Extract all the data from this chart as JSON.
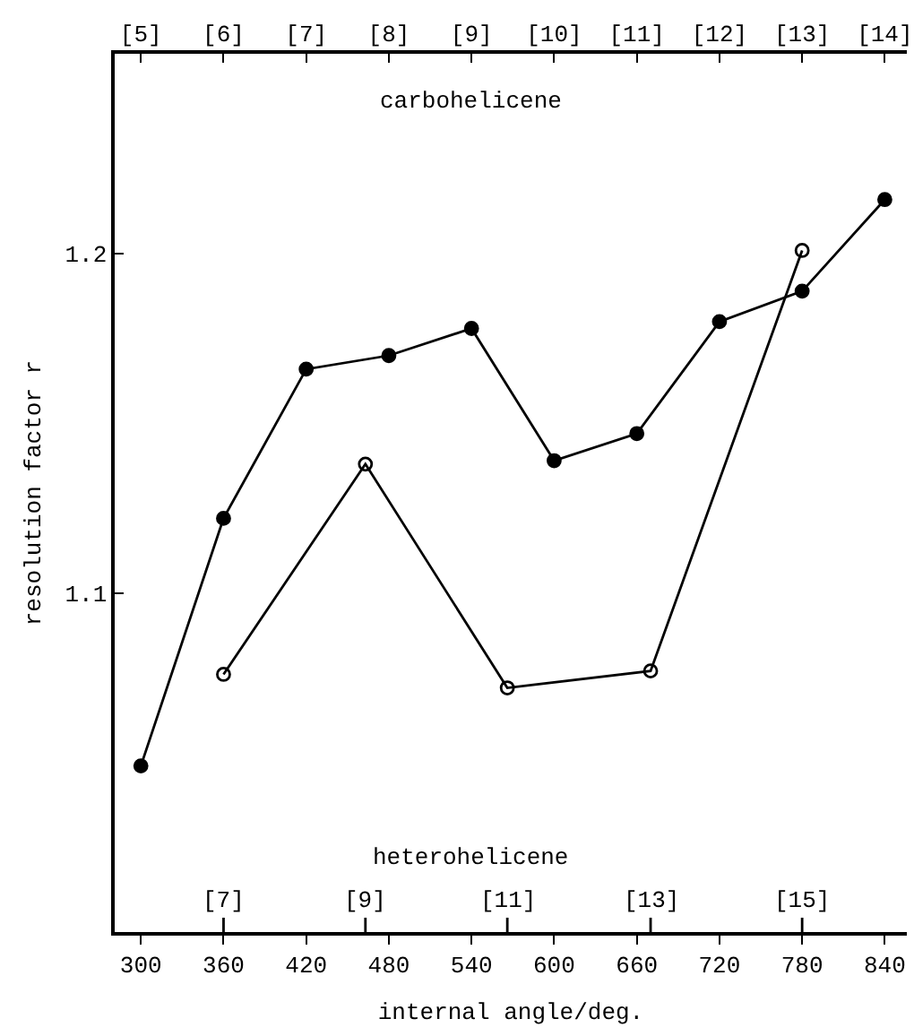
{
  "chart_data": {
    "type": "line",
    "xlabel": "internal angle/deg.",
    "ylabel": "resolution factor r",
    "xlim": [
      281,
      856
    ],
    "xticks": [
      300,
      360,
      420,
      480,
      540,
      600,
      660,
      720,
      780,
      840
    ],
    "x2lim": [
      4.683,
      14.267
    ],
    "x2ticks": [
      {
        "value": 5,
        "label": "[5]"
      },
      {
        "value": 6,
        "label": "[6]"
      },
      {
        "value": 7,
        "label": "[7]"
      },
      {
        "value": 8,
        "label": "[8]"
      },
      {
        "value": 9,
        "label": "[9]"
      },
      {
        "value": 10,
        "label": "[10]"
      },
      {
        "value": 11,
        "label": "[11]"
      },
      {
        "value": 12,
        "label": "[12]"
      },
      {
        "value": 13,
        "label": "[13]"
      },
      {
        "value": 14,
        "label": "[14]"
      }
    ],
    "ylim": [
      1.0,
      1.259
    ],
    "yticks": [
      1.1,
      1.2
    ],
    "marker": "circle",
    "series": [
      {
        "color": "#000000",
        "x": [
          300,
          360,
          420,
          480,
          540,
          600,
          660,
          720,
          780,
          840
        ],
        "values": [
          1.049,
          1.122,
          1.166,
          1.17,
          1.178,
          1.139,
          1.147,
          1.18,
          1.189,
          1.216
        ]
      },
      {
        "color": "#000000",
        "marker": "circle-open",
        "x": [
          360,
          463,
          566,
          670,
          780
        ],
        "values": [
          1.076,
          1.138,
          1.072,
          1.077,
          1.201
        ]
      }
    ],
    "annotations": [
      "carbohelicene",
      "heterohelicene",
      "[7]",
      "[9]",
      "[11]",
      "[13]",
      "[15]"
    ]
  }
}
